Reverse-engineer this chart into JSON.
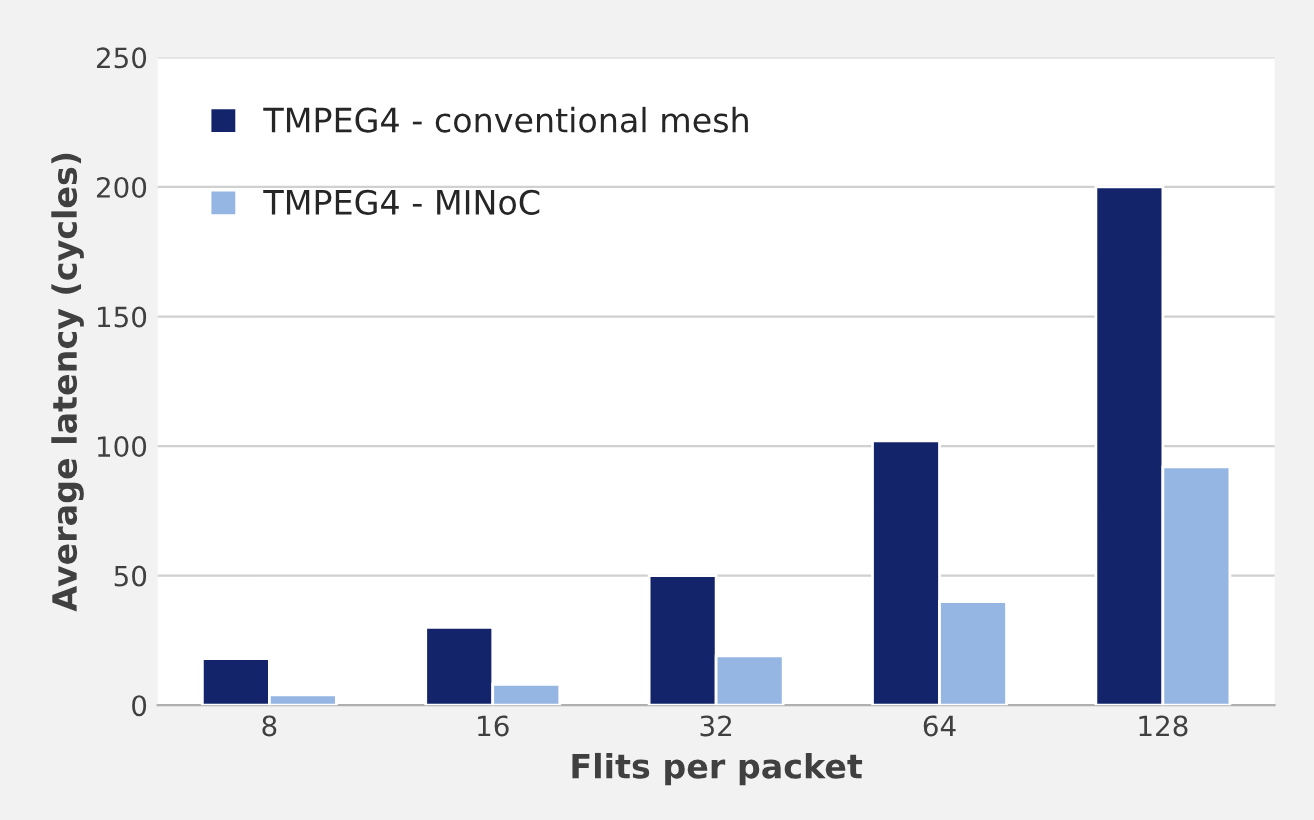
{
  "chart_data": {
    "type": "bar",
    "xlabel": "Flits per packet",
    "ylabel": "Average latency (cycles)",
    "categories": [
      "8",
      "16",
      "32",
      "64",
      "128"
    ],
    "series": [
      {
        "name": "TMPEG4 - conventional mesh",
        "color": "#13246b",
        "values": [
          18,
          30,
          50,
          102,
          200
        ]
      },
      {
        "name": "TMPEG4 - MINoC",
        "color": "#95b5e2",
        "values": [
          4,
          8,
          19,
          40,
          92
        ]
      }
    ],
    "ylim": [
      0,
      250
    ],
    "yticks": [
      0,
      50,
      100,
      150,
      200,
      250
    ],
    "grid": "y",
    "legend": "top left"
  }
}
